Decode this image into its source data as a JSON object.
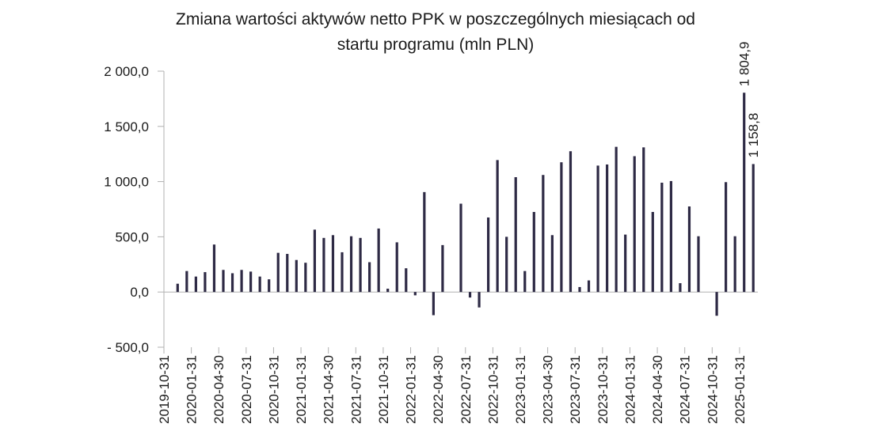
{
  "chart_data": {
    "type": "bar",
    "title_lines": [
      "Zmiana wartości aktywów netto PPK w poszczególnych miesiącach od",
      "startu programu (mln PLN)"
    ],
    "ylim": [
      -500,
      2000
    ],
    "y_ticks": [
      2000,
      1500,
      1000,
      500,
      0,
      -500
    ],
    "y_tick_labels": [
      "2 000,0",
      "1 500,0",
      "1 000,0",
      "500,0",
      "0,0",
      "- 500,0"
    ],
    "grid": false,
    "bar_color": "#2e2a45",
    "axis_color": "#b0b0b0",
    "categories": [
      "2019-10-31",
      "2019-11-30",
      "2019-12-31",
      "2020-01-31",
      "2020-02-29",
      "2020-03-31",
      "2020-04-30",
      "2020-05-31",
      "2020-06-30",
      "2020-07-31",
      "2020-08-31",
      "2020-09-30",
      "2020-10-31",
      "2020-11-30",
      "2020-12-31",
      "2021-01-31",
      "2021-02-28",
      "2021-03-31",
      "2021-04-30",
      "2021-05-31",
      "2021-06-30",
      "2021-07-31",
      "2021-08-31",
      "2021-09-30",
      "2021-10-31",
      "2021-11-30",
      "2021-12-31",
      "2022-01-31",
      "2022-02-28",
      "2022-03-31",
      "2022-04-30",
      "2022-05-31",
      "2022-06-30",
      "2022-07-31",
      "2022-08-31",
      "2022-09-30",
      "2022-10-31",
      "2022-11-30",
      "2022-12-31",
      "2023-01-31",
      "2023-02-28",
      "2023-03-31",
      "2023-04-30",
      "2023-05-31",
      "2023-06-30",
      "2023-07-31",
      "2023-08-31",
      "2023-09-30",
      "2023-10-31",
      "2023-11-30",
      "2023-12-31",
      "2024-01-31",
      "2024-02-29",
      "2024-03-31",
      "2024-04-30",
      "2024-05-31",
      "2024-06-30",
      "2024-07-31",
      "2024-08-31",
      "2024-09-30",
      "2024-10-31",
      "2024-11-30",
      "2024-12-31",
      "2025-01-31",
      "2025-02-28"
    ],
    "shown_tick_labels": [
      "2019-10-31",
      "2020-01-31",
      "2020-04-30",
      "2020-07-31",
      "2020-10-31",
      "2021-01-31",
      "2021-04-30",
      "2021-07-31",
      "2021-10-31",
      "2022-01-31",
      "2022-04-30",
      "2022-07-31",
      "2022-10-31",
      "2023-01-31",
      "2023-04-30",
      "2023-07-31",
      "2023-10-31",
      "2024-01-31",
      "2024-04-30",
      "2024-07-31",
      "2024-10-31",
      "2025-01-31"
    ],
    "values": [
      0,
      75,
      190,
      140,
      180,
      430,
      200,
      170,
      200,
      185,
      140,
      115,
      355,
      345,
      290,
      265,
      565,
      490,
      515,
      360,
      505,
      490,
      270,
      575,
      30,
      450,
      215,
      -30,
      905,
      -210,
      425,
      0,
      800,
      -50,
      -140,
      675,
      1195,
      500,
      1040,
      190,
      725,
      1060,
      515,
      1175,
      1275,
      45,
      105,
      1145,
      1155,
      1315,
      520,
      1230,
      1310,
      725,
      990,
      1005,
      80,
      775,
      505,
      0,
      -215,
      995,
      505,
      1804.9,
      1158.8
    ],
    "data_labels": [
      {
        "index": 63,
        "text": "1 804,9"
      },
      {
        "index": 64,
        "text": "1 158,8"
      }
    ]
  }
}
